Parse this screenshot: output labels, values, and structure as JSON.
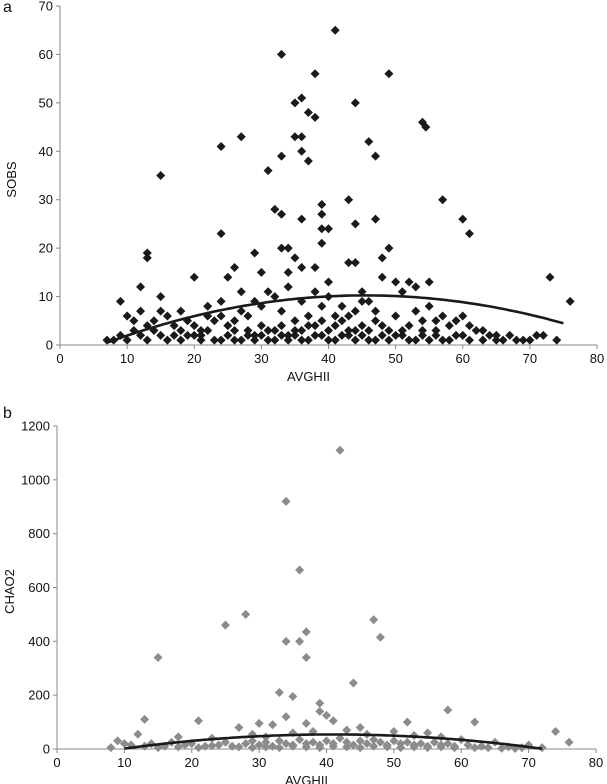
{
  "chart_data": [
    {
      "type": "scatter",
      "panel_label": "a",
      "xlabel": "AVGHII",
      "ylabel": "SOBS",
      "xlim": [
        0,
        80
      ],
      "ylim": [
        0,
        70
      ],
      "xticks": [
        0,
        10,
        20,
        30,
        40,
        50,
        60,
        70,
        80
      ],
      "yticks": [
        0,
        10,
        20,
        30,
        40,
        50,
        60,
        70
      ],
      "marker_color": "#1a1a1a",
      "trend_color": "#1a1a1a",
      "trendline": {
        "type": "polynomial",
        "coef": [
          -3.4,
          0.6,
          -0.0066
        ],
        "x_range": [
          7,
          75
        ]
      },
      "points": [
        [
          41,
          65
        ],
        [
          33,
          60
        ],
        [
          38,
          56
        ],
        [
          49,
          56
        ],
        [
          36,
          51
        ],
        [
          35,
          50
        ],
        [
          44,
          50
        ],
        [
          37,
          48
        ],
        [
          38,
          47
        ],
        [
          54,
          46
        ],
        [
          54.5,
          45
        ],
        [
          35,
          43
        ],
        [
          36,
          43
        ],
        [
          27,
          43
        ],
        [
          24,
          41
        ],
        [
          46,
          42
        ],
        [
          33,
          39
        ],
        [
          36,
          40
        ],
        [
          47,
          39
        ],
        [
          37,
          38
        ],
        [
          31,
          36
        ],
        [
          15,
          35
        ],
        [
          57,
          30
        ],
        [
          39,
          29
        ],
        [
          43,
          30
        ],
        [
          32,
          28
        ],
        [
          33,
          27
        ],
        [
          39,
          27
        ],
        [
          36,
          26
        ],
        [
          47,
          26
        ],
        [
          60,
          26
        ],
        [
          44,
          25
        ],
        [
          39,
          24
        ],
        [
          40,
          24
        ],
        [
          24,
          23
        ],
        [
          61,
          23
        ],
        [
          33,
          20
        ],
        [
          34,
          20
        ],
        [
          49,
          20
        ],
        [
          39,
          21
        ],
        [
          35,
          18
        ],
        [
          13,
          19
        ],
        [
          13,
          18
        ],
        [
          29,
          19
        ],
        [
          48,
          18
        ],
        [
          43,
          17
        ],
        [
          44,
          17
        ],
        [
          20,
          14
        ],
        [
          25,
          14
        ],
        [
          30,
          15
        ],
        [
          38,
          16
        ],
        [
          26,
          16
        ],
        [
          36,
          16
        ],
        [
          34,
          15
        ],
        [
          73,
          14
        ],
        [
          48,
          14
        ],
        [
          55,
          13
        ],
        [
          50,
          13
        ],
        [
          52,
          13
        ],
        [
          12,
          12
        ],
        [
          9,
          9
        ],
        [
          15,
          10
        ],
        [
          27,
          11
        ],
        [
          31,
          11
        ],
        [
          45,
          11
        ],
        [
          40,
          13
        ],
        [
          76,
          9
        ],
        [
          24,
          9
        ],
        [
          45,
          9
        ],
        [
          22,
          8
        ],
        [
          18,
          7
        ],
        [
          12,
          7
        ],
        [
          10,
          6
        ],
        [
          11,
          5
        ],
        [
          14,
          5
        ],
        [
          17,
          4
        ],
        [
          20,
          4
        ],
        [
          23,
          5
        ],
        [
          26,
          3
        ],
        [
          28,
          6
        ],
        [
          30,
          4
        ],
        [
          33,
          7
        ],
        [
          35,
          5
        ],
        [
          37,
          6
        ],
        [
          39,
          8
        ],
        [
          41,
          4
        ],
        [
          43,
          6
        ],
        [
          47,
          5
        ],
        [
          50,
          6
        ],
        [
          53,
          7
        ],
        [
          56,
          5
        ],
        [
          58,
          4
        ],
        [
          60,
          6
        ],
        [
          62,
          3
        ],
        [
          64,
          2
        ],
        [
          66,
          1
        ],
        [
          69,
          1
        ],
        [
          72,
          2
        ],
        [
          8,
          1
        ],
        [
          9,
          2
        ],
        [
          11,
          3
        ],
        [
          13,
          1
        ],
        [
          15,
          2
        ],
        [
          16,
          1
        ],
        [
          19,
          2
        ],
        [
          21,
          1
        ],
        [
          22,
          3
        ],
        [
          24,
          1
        ],
        [
          25,
          2
        ],
        [
          27,
          1
        ],
        [
          29,
          2
        ],
        [
          31,
          1
        ],
        [
          32,
          3
        ],
        [
          34,
          2
        ],
        [
          36,
          1
        ],
        [
          38,
          2
        ],
        [
          40,
          1
        ],
        [
          42,
          2
        ],
        [
          44,
          3
        ],
        [
          46,
          1
        ],
        [
          48,
          2
        ],
        [
          49,
          1
        ],
        [
          51,
          2
        ],
        [
          52,
          1
        ],
        [
          54,
          2
        ],
        [
          55,
          1
        ],
        [
          57,
          1
        ],
        [
          59,
          2
        ],
        [
          61,
          1
        ],
        [
          63,
          1
        ],
        [
          67,
          2
        ],
        [
          70,
          1
        ],
        [
          10,
          1
        ],
        [
          12,
          2
        ],
        [
          14,
          3
        ],
        [
          17,
          2
        ],
        [
          18,
          1
        ],
        [
          20,
          2
        ],
        [
          21,
          3
        ],
        [
          23,
          1
        ],
        [
          25,
          4
        ],
        [
          26,
          1
        ],
        [
          28,
          2
        ],
        [
          29,
          1
        ],
        [
          30,
          2
        ],
        [
          31,
          3
        ],
        [
          32,
          1
        ],
        [
          33,
          2
        ],
        [
          34,
          1
        ],
        [
          35,
          2
        ],
        [
          36,
          3
        ],
        [
          37,
          1
        ],
        [
          38,
          4
        ],
        [
          39,
          2
        ],
        [
          40,
          3
        ],
        [
          41,
          1
        ],
        [
          42,
          5
        ],
        [
          43,
          2
        ],
        [
          44,
          1
        ],
        [
          45,
          2
        ],
        [
          46,
          3
        ],
        [
          47,
          1
        ],
        [
          48,
          4
        ],
        [
          50,
          2
        ],
        [
          51,
          3
        ],
        [
          53,
          1
        ],
        [
          54,
          3
        ],
        [
          56,
          2
        ],
        [
          58,
          1
        ],
        [
          60,
          2
        ],
        [
          65,
          1
        ],
        [
          74,
          1
        ],
        [
          7,
          1
        ],
        [
          16,
          6
        ],
        [
          19,
          5
        ],
        [
          22,
          6
        ],
        [
          27,
          7
        ],
        [
          29,
          9
        ],
        [
          32,
          10
        ],
        [
          34,
          12
        ],
        [
          36,
          9
        ],
        [
          38,
          11
        ],
        [
          40,
          10
        ],
        [
          42,
          8
        ],
        [
          44,
          7
        ],
        [
          46,
          9
        ],
        [
          51,
          11
        ],
        [
          53,
          12
        ],
        [
          55,
          8
        ],
        [
          57,
          6
        ],
        [
          59,
          5
        ],
        [
          61,
          4
        ],
        [
          63,
          3
        ],
        [
          65,
          2
        ],
        [
          68,
          1
        ],
        [
          71,
          2
        ],
        [
          13,
          4
        ],
        [
          15,
          7
        ],
        [
          18,
          3
        ],
        [
          21,
          2
        ],
        [
          24,
          6
        ],
        [
          26,
          5
        ],
        [
          28,
          3
        ],
        [
          30,
          8
        ],
        [
          33,
          4
        ],
        [
          35,
          3
        ],
        [
          37,
          4
        ],
        [
          39,
          5
        ],
        [
          41,
          6
        ],
        [
          43,
          3
        ],
        [
          45,
          4
        ],
        [
          47,
          7
        ],
        [
          49,
          3
        ],
        [
          52,
          4
        ],
        [
          54,
          5
        ],
        [
          56,
          3
        ]
      ]
    },
    {
      "type": "scatter",
      "panel_label": "b",
      "xlabel": "AVGHII",
      "ylabel": "CHAO2",
      "xlim": [
        0,
        80
      ],
      "ylim": [
        0,
        1200
      ],
      "xticks": [
        0,
        10,
        20,
        30,
        40,
        50,
        60,
        70,
        80
      ],
      "yticks": [
        0,
        200,
        400,
        600,
        800,
        1000,
        1200
      ],
      "marker_color": "#8c8c8c",
      "trend_color": "#1a1a1a",
      "trendline": {
        "type": "polynomial",
        "coef": [
          -38,
          4.5,
          -0.055
        ],
        "x_range": [
          10,
          72
        ]
      },
      "points": [
        [
          42,
          1110
        ],
        [
          34,
          920
        ],
        [
          36,
          665
        ],
        [
          28,
          500
        ],
        [
          25,
          460
        ],
        [
          47,
          480
        ],
        [
          48,
          415
        ],
        [
          37,
          435
        ],
        [
          34,
          400
        ],
        [
          36,
          400
        ],
        [
          37,
          340
        ],
        [
          15,
          340
        ],
        [
          44,
          245
        ],
        [
          33,
          210
        ],
        [
          35,
          195
        ],
        [
          39,
          170
        ],
        [
          39,
          140
        ],
        [
          58,
          145
        ],
        [
          40,
          125
        ],
        [
          13,
          110
        ],
        [
          34,
          120
        ],
        [
          41,
          105
        ],
        [
          52,
          100
        ],
        [
          21,
          105
        ],
        [
          62,
          100
        ],
        [
          32,
          90
        ],
        [
          45,
          80
        ],
        [
          27,
          80
        ],
        [
          30,
          95
        ],
        [
          37,
          95
        ],
        [
          74,
          65
        ],
        [
          55,
          60
        ],
        [
          50,
          65
        ],
        [
          12,
          55
        ],
        [
          18,
          45
        ],
        [
          23,
          40
        ],
        [
          29,
          55
        ],
        [
          31,
          45
        ],
        [
          35,
          60
        ],
        [
          38,
          65
        ],
        [
          43,
          70
        ],
        [
          46,
          55
        ],
        [
          53,
          50
        ],
        [
          57,
          45
        ],
        [
          60,
          35
        ],
        [
          65,
          25
        ],
        [
          70,
          15
        ],
        [
          76,
          25
        ],
        [
          9,
          30
        ],
        [
          10,
          20
        ],
        [
          11,
          15
        ],
        [
          14,
          20
        ],
        [
          16,
          10
        ],
        [
          17,
          25
        ],
        [
          19,
          15
        ],
        [
          20,
          20
        ],
        [
          22,
          10
        ],
        [
          24,
          15
        ],
        [
          25,
          25
        ],
        [
          26,
          10
        ],
        [
          28,
          20
        ],
        [
          29,
          30
        ],
        [
          30,
          15
        ],
        [
          31,
          25
        ],
        [
          32,
          10
        ],
        [
          33,
          30
        ],
        [
          34,
          20
        ],
        [
          35,
          15
        ],
        [
          36,
          35
        ],
        [
          37,
          20
        ],
        [
          38,
          25
        ],
        [
          39,
          15
        ],
        [
          40,
          30
        ],
        [
          41,
          20
        ],
        [
          42,
          40
        ],
        [
          43,
          25
        ],
        [
          44,
          15
        ],
        [
          45,
          30
        ],
        [
          46,
          20
        ],
        [
          47,
          35
        ],
        [
          48,
          25
        ],
        [
          49,
          15
        ],
        [
          50,
          30
        ],
        [
          51,
          20
        ],
        [
          52,
          25
        ],
        [
          53,
          15
        ],
        [
          54,
          20
        ],
        [
          55,
          10
        ],
        [
          56,
          25
        ],
        [
          57,
          15
        ],
        [
          58,
          20
        ],
        [
          59,
          10
        ],
        [
          61,
          15
        ],
        [
          63,
          10
        ],
        [
          64,
          5
        ],
        [
          67,
          8
        ],
        [
          69,
          5
        ],
        [
          72,
          5
        ],
        [
          8,
          5
        ],
        [
          13,
          10
        ],
        [
          15,
          5
        ],
        [
          18,
          8
        ],
        [
          21,
          5
        ],
        [
          23,
          12
        ],
        [
          27,
          8
        ],
        [
          29,
          5
        ],
        [
          31,
          8
        ],
        [
          33,
          5
        ],
        [
          35,
          10
        ],
        [
          37,
          8
        ],
        [
          39,
          5
        ],
        [
          41,
          10
        ],
        [
          43,
          8
        ],
        [
          45,
          5
        ],
        [
          47,
          10
        ],
        [
          49,
          8
        ],
        [
          51,
          5
        ],
        [
          53,
          8
        ],
        [
          55,
          5
        ],
        [
          57,
          8
        ],
        [
          59,
          5
        ],
        [
          62,
          5
        ],
        [
          66,
          3
        ],
        [
          68,
          2
        ]
      ]
    }
  ]
}
